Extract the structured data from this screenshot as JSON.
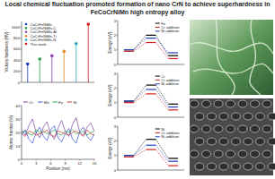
{
  "header": {
    "title": "Local chemical fluctuation promoted formation of nano CrN to achieve superhardness in FeCoCrNiMn high entropy alloy"
  },
  "chart_data": [
    {
      "type": "stem",
      "y_label": "Vickers hardness (HV)",
      "categories": [
        "CoCrFeNiMn",
        "CoCrFeNiMn-C",
        "CoCrFeNiMn-Al",
        "CoCrFeNiMn-Ti",
        "CoCrFeNiMn-N",
        "This work"
      ],
      "values": [
        330,
        420,
        480,
        560,
        700,
        1050
      ],
      "colors": [
        "#1f3fbf",
        "#2a9d4a",
        "#8a3fb0",
        "#e08a1a",
        "#2aa8c0",
        "#d01f1f"
      ],
      "ylim": [
        0,
        1100
      ],
      "yticks": [
        0,
        200,
        400,
        600,
        800,
        1000
      ],
      "tick_labels": "y",
      "legend": "top-left",
      "marker": "circle"
    },
    {
      "type": "line",
      "x_label": "Position (nm)",
      "y_label": "Atomic fraction (%)",
      "x": [
        0,
        0.75,
        1.5,
        2.25,
        3,
        3.75,
        4.5,
        5.25,
        6,
        6.75,
        7.5,
        8.25,
        9,
        9.75,
        10.5,
        11.25,
        12,
        12.75,
        13.5,
        14.25,
        15
      ],
      "series": [
        {
          "name": "Cr",
          "color": "#7b3fa0",
          "values": [
            22,
            18,
            25,
            30,
            20,
            16,
            24,
            28,
            19,
            15,
            23,
            29,
            21,
            17,
            26,
            31,
            20,
            18,
            24,
            27,
            21
          ]
        },
        {
          "name": "Mn",
          "color": "#3050d0",
          "values": [
            18,
            22,
            15,
            12,
            20,
            24,
            17,
            14,
            22,
            25,
            16,
            13,
            19,
            23,
            15,
            12,
            21,
            24,
            17,
            14,
            19
          ]
        },
        {
          "name": "Fe",
          "color": "#20a040",
          "values": [
            20,
            21,
            19,
            18,
            22,
            20,
            21,
            19,
            20,
            22,
            19,
            18,
            21,
            20,
            22,
            19,
            20,
            21,
            18,
            20,
            21
          ]
        },
        {
          "name": "Ni",
          "color": "#d03030",
          "values": [
            19,
            17,
            21,
            20,
            18,
            19,
            20,
            22,
            18,
            17,
            21,
            20,
            19,
            18,
            20,
            21,
            19,
            17,
            22,
            19,
            18
          ]
        }
      ],
      "xlim": [
        0,
        15
      ],
      "xticks": [
        0,
        3,
        6,
        9,
        12,
        15
      ],
      "ylim": [
        0,
        40
      ],
      "yticks": [
        0,
        10,
        20,
        30,
        40
      ],
      "legend": "top"
    },
    {
      "type": "line",
      "y_label": "Energy (eV)",
      "categories": [
        null,
        null,
        null
      ],
      "series": [
        {
          "name": "Fe",
          "color": "#000000",
          "values": [
            1.0,
            2.0,
            0.6
          ]
        },
        {
          "name": "Cr addition",
          "color": "#d01f1f",
          "values": [
            0.9,
            1.5,
            0.4
          ]
        },
        {
          "name": "Ni addition",
          "color": "#1f3fbf",
          "values": [
            1.0,
            1.8,
            0.8
          ]
        }
      ],
      "ylim": [
        0,
        3
      ],
      "yticks": [
        0,
        1,
        2,
        3
      ],
      "tick_labels": "y",
      "marker": "hline",
      "line_style": "dashed",
      "legend": "top-right"
    },
    {
      "type": "line",
      "y_label": "Energy (eV)",
      "categories": [
        null,
        null,
        null
      ],
      "series": [
        {
          "name": "Cr",
          "color": "#000000",
          "values": [
            1.1,
            2.2,
            0.9
          ]
        },
        {
          "name": "Cr addition",
          "color": "#d01f1f",
          "values": [
            1.0,
            1.6,
            0.5
          ]
        },
        {
          "name": "Ni addition",
          "color": "#1f3fbf",
          "values": [
            1.1,
            1.9,
            0.7
          ]
        }
      ],
      "ylim": [
        0,
        3
      ],
      "yticks": [
        0,
        1,
        2,
        3
      ],
      "tick_labels": "y",
      "marker": "hline",
      "line_style": "dashed",
      "legend": "top-right"
    },
    {
      "type": "line",
      "y_label": "Energy (eV)",
      "categories": [
        null,
        null,
        null
      ],
      "series": [
        {
          "name": "Ni",
          "color": "#000000",
          "values": [
            1.0,
            2.1,
            0.8
          ]
        },
        {
          "name": "Cr addition",
          "color": "#d01f1f",
          "values": [
            0.9,
            1.4,
            0.3
          ]
        },
        {
          "name": "Ni addition",
          "color": "#1f3fbf",
          "values": [
            1.0,
            1.7,
            0.6
          ]
        }
      ],
      "ylim": [
        0,
        3
      ],
      "yticks": [
        0,
        1,
        2,
        3
      ],
      "tick_labels": "y",
      "marker": "hline",
      "line_style": "dashed",
      "legend": "top-right"
    }
  ]
}
